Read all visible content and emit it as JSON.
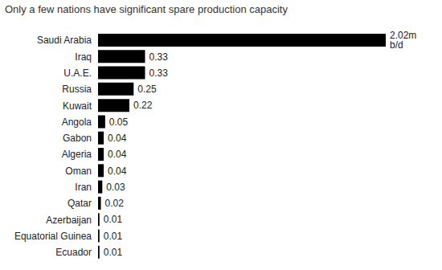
{
  "chart_data": {
    "type": "bar",
    "title": "Only a few nations have significant spare production capacity",
    "orientation": "horizontal",
    "categories": [
      "Saudi Arabia",
      "Iraq",
      "U.A.E.",
      "Russia",
      "Kuwait",
      "Angola",
      "Gabon",
      "Algeria",
      "Oman",
      "Iran",
      "Qatar",
      "Azerbaijan",
      "Equatorial Guinea",
      "Ecuador"
    ],
    "values": [
      2.02,
      0.33,
      0.33,
      0.25,
      0.22,
      0.05,
      0.04,
      0.04,
      0.04,
      0.03,
      0.02,
      0.01,
      0.01,
      0.01
    ],
    "value_labels": [
      "2.02m b/d",
      "0.33",
      "0.33",
      "0.25",
      "0.22",
      "0.05",
      "0.04",
      "0.04",
      "0.04",
      "0.03",
      "0.02",
      "0.01",
      "0.01",
      "0.01"
    ],
    "color": "#000000",
    "xlim": [
      0,
      2.02
    ],
    "data_labels": true,
    "tick_labels": "y",
    "grid": false
  }
}
